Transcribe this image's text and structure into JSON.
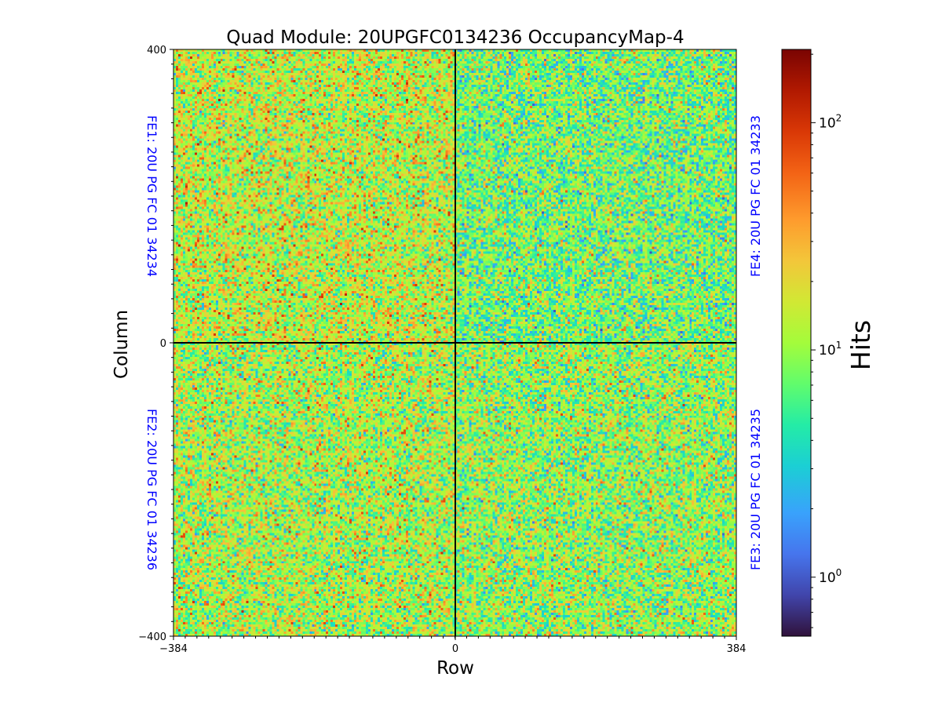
{
  "chart_data": {
    "type": "heatmap",
    "title": "Quad Module: 20UPGFC0134236 OccupancyMap-4",
    "xlabel": "Row",
    "ylabel": "Column",
    "x_ticks": [
      "−384",
      "0",
      "384"
    ],
    "y_ticks": [
      "400",
      "0",
      "−400"
    ],
    "xlim": [
      -384,
      384
    ],
    "ylim": [
      -400,
      400
    ],
    "colorscale": "turbo",
    "colorbar": {
      "label": "Hits",
      "scale": "log",
      "range": [
        0.55,
        210
      ],
      "ticks": [
        {
          "value": 1,
          "base": "10",
          "exp": "0"
        },
        {
          "value": 10,
          "base": "10",
          "exp": "1"
        },
        {
          "value": 100,
          "base": "10",
          "exp": "2"
        }
      ]
    },
    "chip_labels": [
      {
        "text": "FE1: 20U PG FC 01 34234",
        "side": "left",
        "quadrant": "top"
      },
      {
        "text": "FE2: 20U PG FC 01 34236",
        "side": "left",
        "quadrant": "bottom"
      },
      {
        "text": "FE4: 20U PG FC 01 34233",
        "side": "right",
        "quadrant": "top"
      },
      {
        "text": "FE3: 20U PG FC 01 34235",
        "side": "right",
        "quadrant": "bottom"
      }
    ],
    "label_color": "#0000ff",
    "quadrant_mean_hits": {
      "top-left": 14,
      "top-right": 8,
      "bottom-left": 12,
      "bottom-right": 10
    },
    "grid": false
  }
}
